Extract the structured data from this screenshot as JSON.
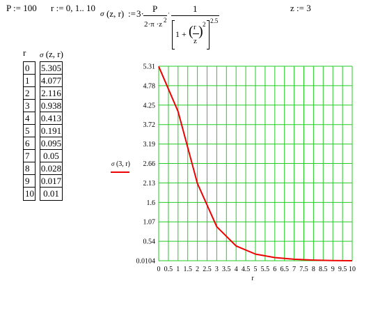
{
  "definitions": {
    "p": "P := 100",
    "r_range": "r := 0, 1.. 10",
    "z": "z := 3"
  },
  "formula": {
    "lhs_symbol": "σ",
    "lhs_args": "(z, r)",
    "assign": ":=",
    "coef": "3·",
    "numerator_p": "P",
    "denominator_left": "2·π ·z",
    "denominator_left_exp": "2",
    "dot": "·",
    "numerator_one": "1",
    "bracket_one_plus": "1 +",
    "frac_r": "r",
    "frac_z": "z",
    "inner_exp": "2",
    "outer_exp": "2.5"
  },
  "table": {
    "r_header": "r",
    "sigma_header_symbol": "σ",
    "sigma_header_args": "(z, r)",
    "r_values": [
      "0",
      "1",
      "2",
      "3",
      "4",
      "5",
      "6",
      "7",
      "8",
      "9",
      "10"
    ],
    "sigma_values": [
      "5.305",
      "4.077",
      "2.116",
      "0.938",
      "0.413",
      "0.191",
      "0.095",
      "0.05",
      "0.028",
      "0.017",
      "0.01"
    ]
  },
  "chart_data": {
    "type": "line",
    "series": [
      {
        "name": "σ(3, r)",
        "color": "#ee0000",
        "x": [
          0,
          1,
          2,
          3,
          4,
          5,
          6,
          7,
          8,
          9,
          10
        ],
        "y": [
          5.305,
          4.077,
          2.116,
          0.938,
          0.413,
          0.191,
          0.095,
          0.05,
          0.028,
          0.017,
          0.01
        ]
      }
    ],
    "legend_symbol": "σ",
    "legend_args": "(3, r)",
    "xlabel": "r",
    "x_ticks": [
      "0",
      "0.5",
      "1",
      "1.5",
      "2",
      "2.5",
      "3",
      "3.5",
      "4",
      "4.5",
      "5",
      "5.5",
      "6",
      "6.5",
      "7",
      "7.5",
      "8",
      "8.5",
      "9",
      "9.5",
      "10"
    ],
    "x_tick_values": [
      0,
      0.5,
      1,
      1.5,
      2,
      2.5,
      3,
      3.5,
      4,
      4.5,
      5,
      5.5,
      6,
      6.5,
      7,
      7.5,
      8,
      8.5,
      9,
      9.5,
      10
    ],
    "y_ticks": [
      "5.31",
      "4.78",
      "4.25",
      "3.72",
      "3.19",
      "2.66",
      "2.13",
      "1.6",
      "1.07",
      "0.54",
      "0.0104"
    ],
    "y_tick_values": [
      5.31,
      4.78,
      4.25,
      3.72,
      3.19,
      2.66,
      2.13,
      1.6,
      1.07,
      0.54,
      0.0104
    ],
    "xlim": [
      0,
      10
    ],
    "ylim": [
      0.0104,
      5.31
    ],
    "grid": true,
    "grid_color": "#22cc22",
    "legend_placement": "left"
  }
}
